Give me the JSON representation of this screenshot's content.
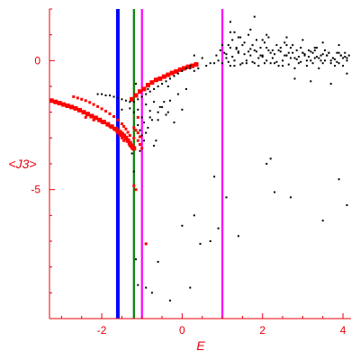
{
  "chart_data": {
    "type": "scatter",
    "xlabel": "E",
    "ylabel": "<J3>",
    "xlim": [
      -3.3,
      4.2
    ],
    "ylim": [
      -10,
      2
    ],
    "grid": false,
    "axis_color": "#e8000b",
    "x_ticks": [
      {
        "value": -2,
        "label": "-2"
      },
      {
        "value": 0,
        "label": "0"
      },
      {
        "value": 2,
        "label": "2"
      },
      {
        "value": 4,
        "label": "4"
      }
    ],
    "y_ticks": [
      {
        "value": 0,
        "label": "0"
      },
      {
        "value": -5,
        "label": "-5"
      }
    ],
    "vertical_lines": [
      {
        "x": -1.6,
        "color": "#0000ff",
        "width": "thick"
      },
      {
        "x": -1.2,
        "color": "#008000",
        "width": "medium"
      },
      {
        "x": -1.0,
        "color": "#ff00ff",
        "width": "medium"
      },
      {
        "x": 1.0,
        "color": "#ff00ff",
        "width": "medium"
      }
    ],
    "series": [
      {
        "color": "#ff0000",
        "marker": "square-large",
        "x": [
          -3.25,
          -3.15,
          -3.05,
          -2.95,
          -2.85,
          -2.75,
          -2.65,
          -2.55,
          -2.45,
          -2.35,
          -2.25,
          -2.15,
          -2.05,
          -1.95,
          -1.85,
          -1.75,
          -1.65,
          -1.6,
          -1.55,
          -1.5,
          -1.45,
          -1.4,
          -1.35,
          -1.3,
          -1.25,
          -1.2
        ],
        "y": [
          -1.55,
          -1.6,
          -1.65,
          -1.7,
          -1.75,
          -1.8,
          -1.85,
          -1.92,
          -2.0,
          -2.07,
          -2.15,
          -2.22,
          -2.3,
          -2.38,
          -2.47,
          -2.56,
          -2.65,
          -2.72,
          -2.78,
          -2.85,
          -2.92,
          -3.0,
          -3.1,
          -3.2,
          -3.3,
          -3.4
        ]
      },
      {
        "color": "#ff0000",
        "marker": "square-small",
        "x": [
          -2.7,
          -2.6,
          -2.5,
          -2.4,
          -2.3,
          -2.2,
          -2.1,
          -2.0,
          -1.9,
          -1.8,
          -1.7,
          -1.6,
          -1.5,
          -1.45,
          -1.4,
          -1.35,
          -1.3,
          -1.2,
          -1.1,
          -1.05,
          -1.0,
          -2.4,
          -2.2,
          -2.0,
          -1.8,
          -1.7,
          -1.6,
          -1.55,
          -1.5,
          -1.45,
          -1.3,
          -1.25,
          -1.2,
          -1.15,
          -1.1,
          -1.05,
          -1.2,
          -1.15,
          -1.1,
          -0.9
        ],
        "y": [
          -1.4,
          -1.45,
          -1.5,
          -1.55,
          -1.62,
          -1.7,
          -1.78,
          -1.87,
          -1.96,
          -2.06,
          -2.17,
          -2.3,
          -2.45,
          -2.55,
          -2.65,
          -2.78,
          -2.9,
          -3.0,
          -3.1,
          -3.25,
          -3.4,
          -2.2,
          -2.3,
          -2.4,
          -2.55,
          -2.65,
          -2.8,
          -2.9,
          -3.0,
          -3.1,
          -3.3,
          -3.4,
          -2.6,
          -2.7,
          -2.8,
          -2.95,
          -4.85,
          -5.0,
          -2.2,
          -7.1
        ]
      },
      {
        "color": "#ff0000",
        "marker": "square-large",
        "x": [
          -1.25,
          -1.15,
          -1.05,
          -0.95,
          -0.85,
          -0.75,
          -0.65,
          -0.55,
          -0.45,
          -0.35,
          -0.25,
          -0.15,
          -0.05,
          0.05,
          0.15,
          0.25,
          0.35
        ],
        "y": [
          -1.5,
          -1.35,
          -1.2,
          -1.1,
          -0.95,
          -0.85,
          -0.75,
          -0.7,
          -0.62,
          -0.55,
          -0.48,
          -0.42,
          -0.35,
          -0.3,
          -0.24,
          -0.2,
          -0.15
        ]
      },
      {
        "color": "#000000",
        "marker": "dot",
        "x": [
          1.05,
          1.15,
          1.25,
          1.35,
          1.45,
          1.55,
          1.65,
          1.75,
          1.85,
          1.95,
          2.05,
          2.15,
          2.25,
          2.35,
          2.45,
          2.55,
          2.65,
          2.75,
          2.85,
          2.95,
          3.05,
          3.15,
          3.25,
          3.35,
          3.45,
          3.55,
          3.65,
          3.75,
          3.85,
          3.95,
          4.05,
          4.15,
          0.85,
          0.95,
          1.1,
          1.3,
          1.5,
          1.7,
          1.9,
          2.1,
          2.3,
          2.5,
          2.7,
          2.9,
          3.1,
          3.3,
          3.5,
          3.7,
          3.9,
          4.1,
          0.3,
          0.5,
          0.7,
          0.9,
          1.2,
          1.4,
          1.6,
          1.8,
          2.0,
          2.2,
          2.4,
          2.6,
          2.8,
          3.0,
          3.2,
          3.4,
          3.6,
          3.8,
          4.0,
          0.2,
          0.4,
          0.6,
          0.8,
          1.0,
          1.3,
          1.6,
          1.9,
          2.2,
          2.5,
          2.8,
          3.1,
          3.4,
          3.7,
          4.0,
          1.2,
          1.5,
          1.8,
          2.1,
          2.4,
          2.7,
          3.0,
          3.3,
          3.6,
          3.9,
          1.3,
          1.7,
          2.1,
          2.6,
          3.0,
          3.5,
          3.9,
          1.1,
          1.25,
          1.4,
          1.55,
          1.7,
          1.85,
          2.0,
          2.15,
          2.3,
          2.45,
          2.6,
          2.75,
          2.9,
          3.05,
          3.2,
          3.35,
          3.5,
          3.65,
          3.8,
          3.95,
          4.1,
          1.15,
          1.45,
          1.75,
          2.05,
          2.35,
          2.65,
          2.95,
          3.25,
          3.55,
          3.85,
          1.0,
          1.35,
          1.65,
          1.95,
          2.25,
          2.55,
          2.85,
          3.15,
          3.45,
          3.75,
          4.05,
          2.8,
          3.2,
          3.7,
          4.1,
          1.2,
          1.2,
          1.4,
          1.8,
          2.0,
          2.6,
          3.3
        ],
        "y": [
          0.3,
          0.6,
          0.8,
          0.5,
          0.9,
          0.7,
          1.0,
          0.6,
          0.8,
          0.5,
          0.7,
          0.9,
          0.4,
          0.6,
          0.5,
          0.7,
          0.3,
          0.6,
          0.4,
          0.5,
          0.2,
          0.4,
          0.3,
          0.5,
          0.2,
          0.4,
          0.3,
          0.1,
          0.3,
          0.2,
          0.3,
          0.2,
          0.2,
          0.4,
          0.1,
          0.0,
          -0.1,
          0.2,
          0.1,
          0.0,
          -0.1,
          0.0,
          0.1,
          -0.1,
          0.0,
          0.1,
          -0.1,
          0.0,
          -0.1,
          0.0,
          0.2,
          0.1,
          -0.1,
          0.0,
          -0.2,
          0.3,
          0.0,
          -0.1,
          0.2,
          0.3,
          -0.2,
          0.2,
          0.1,
          0.3,
          0.0,
          0.1,
          0.2,
          -0.2,
          0.1,
          -0.3,
          -0.3,
          -0.2,
          -0.1,
          -0.1,
          -0.2,
          -0.1,
          -0.2,
          -0.1,
          -0.2,
          -0.3,
          -0.2,
          -0.3,
          -0.1,
          -0.2,
          0.5,
          0.6,
          0.4,
          0.5,
          0.4,
          0.5,
          0.3,
          0.4,
          0.2,
          0.3,
          1.1,
          1.2,
          1.0,
          0.9,
          0.8,
          0.7,
          0.6,
          0.25,
          0.15,
          0.35,
          0.25,
          0.45,
          0.35,
          0.15,
          0.4,
          0.25,
          0.35,
          0.2,
          0.3,
          0.15,
          0.25,
          0.35,
          0.15,
          0.25,
          0.3,
          0.05,
          0.2,
          0.1,
          -0.05,
          -0.15,
          -0.05,
          -0.1,
          -0.05,
          -0.15,
          -0.05,
          -0.1,
          0.0,
          -0.05,
          0.6,
          0.45,
          0.35,
          0.2,
          0.1,
          0.2,
          0.05,
          0.15,
          0.0,
          0.1,
          0.15,
          -0.7,
          -0.8,
          -0.9,
          -0.5,
          1.1,
          1.5,
          0.9,
          1.7,
          0.8,
          0.6,
          0.5
        ]
      },
      {
        "color": "#000000",
        "marker": "dot",
        "x": [
          -2.1,
          -2.0,
          -1.9,
          -1.8,
          -1.7,
          -1.6,
          -1.5,
          -1.4,
          -1.3,
          -1.2,
          -1.1,
          -1.0,
          -0.9,
          -0.8,
          -0.7,
          -0.6,
          -0.5,
          -0.4,
          -0.3,
          -0.2,
          -0.1,
          0.0,
          0.1,
          0.2,
          -1.5,
          -1.3,
          -1.1,
          -0.9,
          -0.7,
          -0.5,
          -0.3,
          -0.1,
          0.1,
          -1.2,
          -1.0,
          -0.8,
          -0.6,
          -0.4,
          -0.2,
          0.0,
          -1.15,
          -1.1,
          -1.05,
          -1.0,
          -0.95,
          -0.9,
          -0.85,
          -0.8,
          -0.7,
          -0.6,
          -0.55,
          -0.45,
          -0.35,
          -1.05,
          -0.95,
          -0.85,
          -0.75,
          -0.65,
          -0.35,
          0.3
        ],
        "y": [
          -1.3,
          -1.3,
          -1.35,
          -1.35,
          -1.4,
          -1.45,
          -1.5,
          -1.55,
          -1.6,
          -1.6,
          -1.5,
          -1.4,
          -1.3,
          -1.2,
          -1.1,
          -1.0,
          -0.9,
          -0.8,
          -0.7,
          -0.6,
          -0.5,
          -0.4,
          -0.3,
          -0.2,
          -1.9,
          -1.85,
          -1.9,
          -1.7,
          -1.6,
          -1.8,
          -1.55,
          -1.3,
          -1.1,
          -2.0,
          -2.2,
          -1.95,
          -2.3,
          -2.1,
          -2.4,
          -1.9,
          -0.9,
          -2.5,
          -2.7,
          -2.9,
          -3.1,
          -2.8,
          -2.6,
          -2.2,
          -3.3,
          -2.0,
          -1.8,
          -1.6,
          -2.0,
          -3.5,
          -2.4,
          -1.1,
          -2.3,
          -3.1,
          -1.0,
          -0.4
        ]
      },
      {
        "color": "#000000",
        "marker": "dot",
        "x": [
          -1.25,
          -1.2,
          -1.15,
          -1.1,
          -0.9,
          -0.75,
          -0.6,
          -0.3,
          0.0,
          0.2,
          0.3,
          0.7,
          0.8,
          0.9,
          1.1,
          1.4,
          2.1,
          2.2,
          2.3,
          2.7,
          3.5,
          3.9,
          4.1,
          0.45
        ],
        "y": [
          -3.6,
          -4.3,
          -7.7,
          -8.7,
          -8.8,
          -9.0,
          -7.8,
          -9.3,
          -6.4,
          -8.8,
          -6.0,
          -7.0,
          -4.5,
          -6.5,
          -5.3,
          -6.8,
          -4.0,
          -3.8,
          -5.1,
          -5.3,
          -6.2,
          -4.6,
          -5.6,
          -7.1
        ]
      }
    ]
  }
}
